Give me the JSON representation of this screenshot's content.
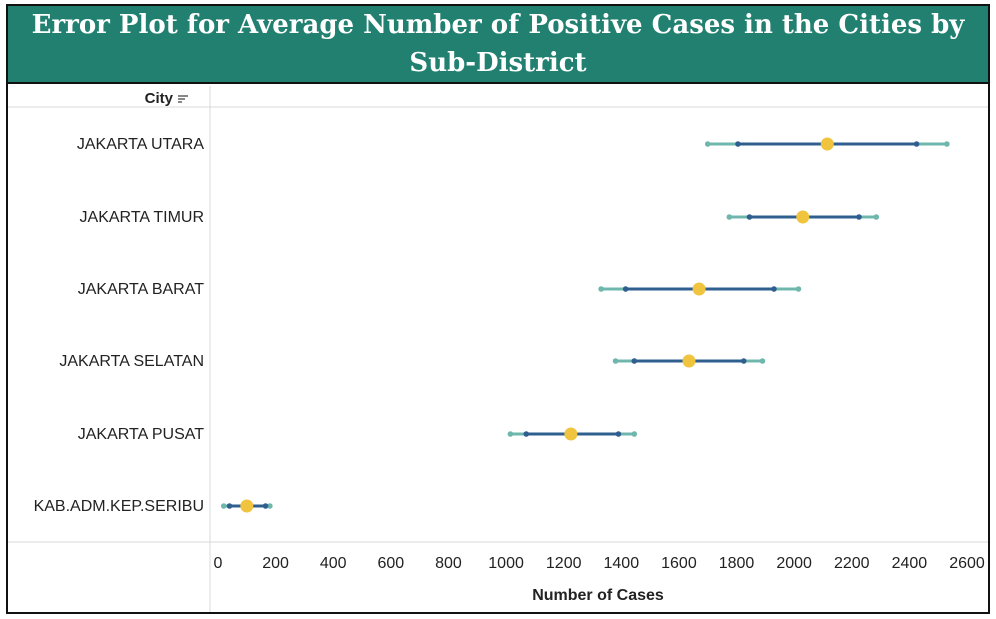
{
  "title": "Error Plot for Average Number of Positive Cases in the Cities by Sub-District",
  "header": {
    "city_label": "City",
    "sort_icon": "sort-descending-icon"
  },
  "colors": {
    "title_bg": "#218070",
    "outer_range": "#6fb7ad",
    "inner_range": "#2f5f8f",
    "average": "#f0c43f",
    "grid": "#d9d9d9"
  },
  "chart_data": {
    "type": "scatter",
    "subtype": "error-plot",
    "title": "Error Plot for Average Number of Positive Cases in the Cities by Sub-District",
    "xlabel": "Number of Cases",
    "ylabel": "City",
    "xlim": [
      0,
      2650
    ],
    "xticks": [
      0,
      200,
      400,
      600,
      800,
      1000,
      1200,
      1400,
      1600,
      1800,
      2000,
      2200,
      2400,
      2600
    ],
    "categories": [
      "JAKARTA UTARA",
      "JAKARTA TIMUR",
      "JAKARTA BARAT",
      "JAKARTA SELATAN",
      "JAKARTA PUSAT",
      "KAB.ADM.KEP.SERIBU"
    ],
    "series": [
      {
        "values": [
          1700,
          1775,
          1330,
          1380,
          1015,
          20
        ]
      },
      {
        "values": [
          1805,
          1845,
          1415,
          1445,
          1070,
          40
        ]
      },
      {
        "values": [
          2115,
          2030,
          1670,
          1635,
          1225,
          100
        ]
      },
      {
        "values": [
          2425,
          2225,
          1930,
          1825,
          1390,
          165
        ]
      },
      {
        "values": [
          2530,
          2285,
          2015,
          1890,
          1445,
          180
        ]
      }
    ],
    "grid": false
  }
}
